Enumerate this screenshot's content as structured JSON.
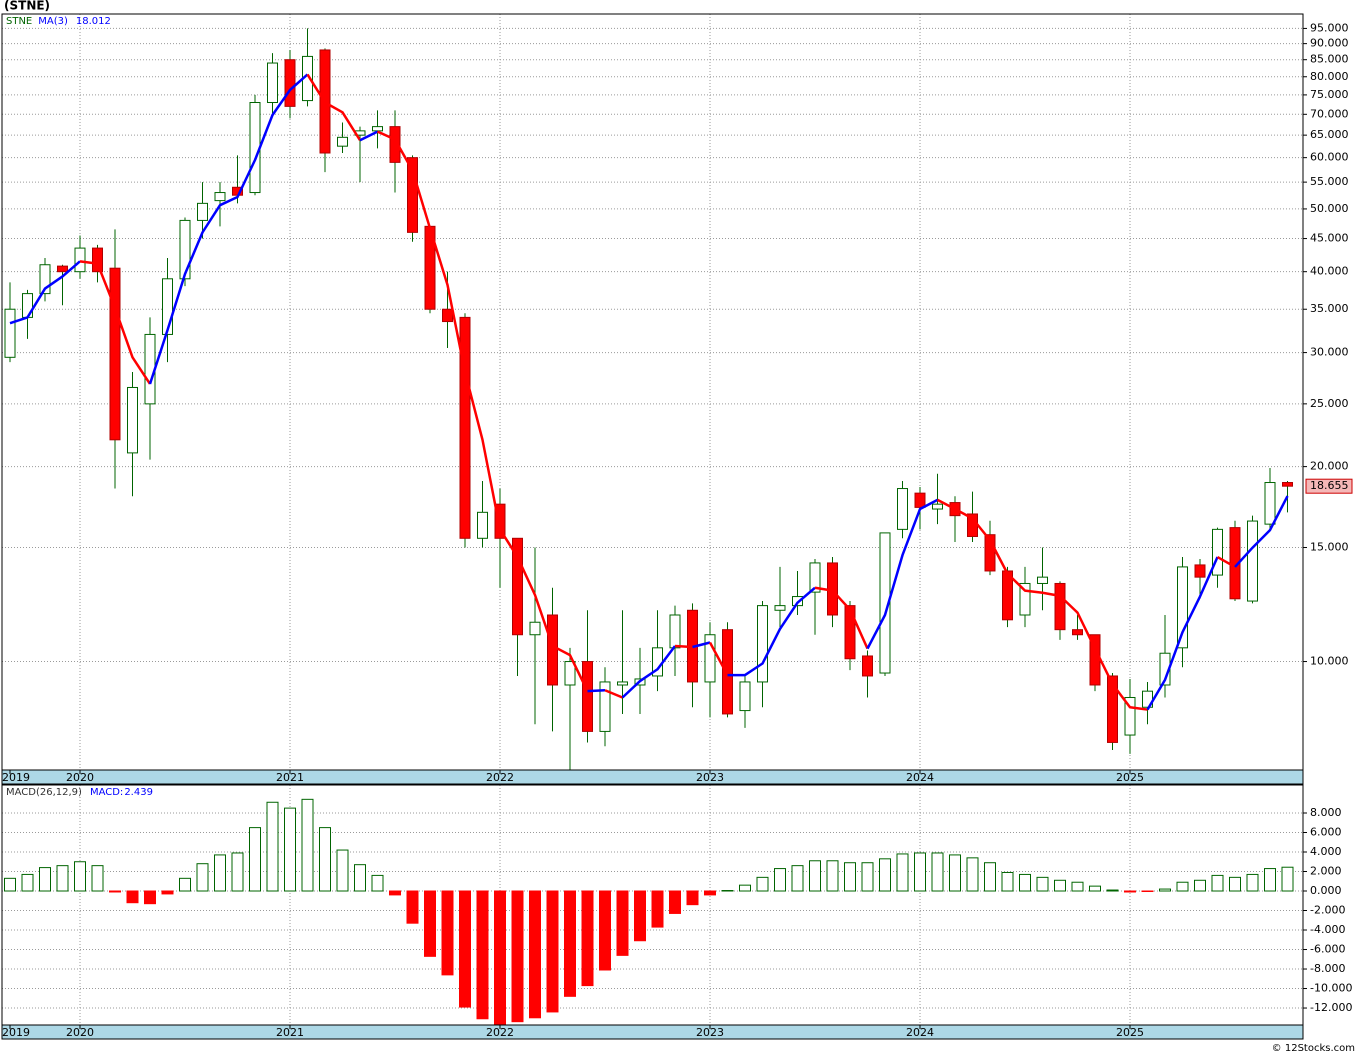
{
  "chart_data": [
    {
      "type": "candlestick",
      "title": "(STNE)",
      "legend": "STNE",
      "categories": [
        "2019",
        null,
        null,
        null,
        "2020",
        null,
        null,
        null,
        null,
        null,
        null,
        null,
        null,
        null,
        null,
        null,
        "2021",
        null,
        null,
        null,
        null,
        null,
        null,
        null,
        null,
        null,
        null,
        null,
        "2022",
        null,
        null,
        null,
        null,
        null,
        null,
        null,
        null,
        null,
        null,
        null,
        "2023",
        null,
        null,
        null,
        null,
        null,
        null,
        null,
        null,
        null,
        null,
        null,
        "2024",
        null,
        null,
        null,
        null,
        null,
        null,
        null,
        null,
        null,
        null,
        null,
        "2025",
        null,
        null,
        null,
        null,
        null,
        null,
        null,
        null,
        null
      ],
      "open": [
        29.5,
        34,
        37,
        40.8,
        40,
        43.5,
        40.5,
        21,
        25,
        32,
        39,
        48,
        51.5,
        54,
        53,
        73,
        85,
        73.5,
        88,
        62.5,
        65,
        66,
        67,
        60,
        47,
        35,
        34,
        15.5,
        17.5,
        15.5,
        11,
        11.8,
        9.2,
        10,
        7.8,
        9.2,
        9.2,
        9.5,
        10.5,
        12,
        9.3,
        11.2,
        8.4,
        9.3,
        12,
        12.2,
        12.8,
        14.2,
        12.2,
        10.2,
        9.6,
        16,
        18.2,
        17.2,
        17.6,
        16.9,
        15.7,
        13.8,
        11.8,
        13.2,
        13.2,
        11.2,
        11,
        9.5,
        7.7,
        8.5,
        9.2,
        10.5,
        14.1,
        13.6,
        16.1,
        12.4,
        16.3,
        18.9
      ],
      "high": [
        38.5,
        37.5,
        42,
        41,
        45.5,
        44,
        46.5,
        28,
        34,
        42,
        48.5,
        55,
        55,
        60.5,
        75,
        87,
        88,
        95,
        88.5,
        68,
        67,
        71,
        71,
        60.5,
        47,
        40,
        34.5,
        19,
        18.5,
        15.5,
        15,
        13,
        10.5,
        12,
        9.8,
        12,
        10.5,
        12,
        12.2,
        12.3,
        11.5,
        11.5,
        9.5,
        12.4,
        14,
        13.8,
        14.4,
        14.5,
        12.4,
        10.4,
        15.8,
        19,
        18.6,
        19.5,
        18,
        18.3,
        16.5,
        14,
        14,
        15,
        13.3,
        11.8,
        11,
        9.6,
        9.4,
        9.3,
        11.8,
        14.5,
        14.4,
        16.1,
        16.5,
        16.8,
        19.9,
        19
      ],
      "low": [
        29,
        31.5,
        36,
        35.5,
        39,
        38.5,
        18.5,
        18,
        20.5,
        29,
        38,
        45,
        47,
        51,
        52.5,
        70,
        69,
        72,
        57,
        61,
        55,
        62,
        53,
        44.5,
        34.5,
        30.5,
        15,
        15,
        13,
        9.5,
        8,
        7.8,
        6.8,
        7.5,
        7.4,
        8.3,
        8.3,
        9,
        9.5,
        8.5,
        8.2,
        8.2,
        7.9,
        8.5,
        11.3,
        11.8,
        11,
        11.3,
        9.7,
        8.8,
        9.5,
        15.5,
        16,
        16.3,
        15.3,
        15.3,
        13.6,
        11.3,
        11.3,
        12,
        10.8,
        10.8,
        9,
        7.3,
        7.2,
        8,
        8.8,
        9.8,
        12.5,
        13,
        12.4,
        12.3,
        16,
        17
      ],
      "close": [
        35,
        37,
        41,
        40,
        43.5,
        40,
        22,
        26.5,
        32,
        39,
        48,
        51,
        53,
        52.5,
        73,
        84,
        72,
        86,
        61,
        64.5,
        66,
        67,
        59,
        46,
        35,
        33.5,
        15.5,
        17,
        15.5,
        11,
        11.5,
        9.2,
        10,
        7.8,
        9.3,
        9.3,
        9.4,
        10.5,
        11.8,
        9.3,
        11,
        8.3,
        9.3,
        12.2,
        12.2,
        12.6,
        14.2,
        11.8,
        10.1,
        9.5,
        15.8,
        18.5,
        17.3,
        17.5,
        16.8,
        15.6,
        13.8,
        11.6,
        13.2,
        13.5,
        11.2,
        11,
        9.2,
        7.5,
        8.8,
        9,
        10.3,
        14,
        13.5,
        16,
        12.5,
        16.48,
        18.9,
        18.655
      ],
      "up_color": "#ffffff",
      "down_color": "#ff0000",
      "up_outline": "#006400",
      "down_outline": "#b00000",
      "wick_color": "#006400",
      "log_scale": true,
      "ylim": [
        6.8,
        100
      ],
      "yticks": [
        {
          "value": 10,
          "label": "10.000"
        },
        {
          "value": 15,
          "label": "15.000"
        },
        {
          "value": 20,
          "label": "20.000"
        },
        {
          "value": 25,
          "label": "25.000"
        },
        {
          "value": 30,
          "label": "30.000"
        },
        {
          "value": 35,
          "label": "35.000"
        },
        {
          "value": 40,
          "label": "40.000"
        },
        {
          "value": 45,
          "label": "45.000"
        },
        {
          "value": 50,
          "label": "50.000"
        },
        {
          "value": 55,
          "label": "55.000"
        },
        {
          "value": 60,
          "label": "60.000"
        },
        {
          "value": 65,
          "label": "65.000"
        },
        {
          "value": 70,
          "label": "70.000"
        },
        {
          "value": 75,
          "label": "75.000"
        },
        {
          "value": 80,
          "label": "80.000"
        },
        {
          "value": 85,
          "label": "85.000"
        },
        {
          "value": 90,
          "label": "90.000"
        },
        {
          "value": 95,
          "label": "95.000"
        }
      ],
      "grid": true,
      "overlay": {
        "name": "MA(3)",
        "rising_color": "#0000ff",
        "falling_color": "#ff0000",
        "values": [
          33.3,
          34,
          37.67,
          39.33,
          41.5,
          41.17,
          35.17,
          29.5,
          26.83,
          32.5,
          39.67,
          46,
          50.67,
          52.17,
          59.5,
          69.83,
          76.33,
          80.67,
          73,
          70.5,
          63.83,
          65.83,
          64,
          57.33,
          46.67,
          38.17,
          28,
          22,
          16,
          14.5,
          12.67,
          10.57,
          10.23,
          9,
          9.03,
          8.8,
          9.33,
          9.73,
          10.57,
          10.53,
          10.7,
          9.53,
          9.53,
          9.93,
          11.23,
          12.33,
          13,
          12.87,
          12.03,
          10.47,
          11.8,
          14.6,
          17.2,
          17.77,
          17.2,
          16.63,
          15.4,
          13.67,
          12.87,
          12.77,
          12.63,
          11.9,
          10.47,
          9.23,
          8.5,
          8.43,
          9.37,
          11.1,
          12.6,
          14.5,
          14,
          14.99,
          15.96,
          18.012
        ]
      }
    },
    {
      "type": "bar",
      "legend": "MACD(26,12,9)",
      "series": [
        {
          "name": "MACD:",
          "color": "#006400",
          "negative_color": "#ff0000",
          "values": [
            1.3,
            1.7,
            2.4,
            2.6,
            3.0,
            2.6,
            -0.1,
            -1.2,
            -1.3,
            -0.3,
            1.3,
            2.8,
            3.7,
            3.9,
            6.5,
            9.1,
            8.5,
            9.4,
            6.5,
            4.2,
            2.7,
            1.6,
            -0.4,
            -3.3,
            -6.7,
            -8.6,
            -11.9,
            -13.1,
            -13.7,
            -13.4,
            -13.0,
            -12.4,
            -10.8,
            -9.7,
            -8.1,
            -6.6,
            -5.1,
            -3.7,
            -2.3,
            -1.4,
            -0.4,
            0.05,
            0.6,
            1.4,
            2.3,
            2.6,
            3.1,
            3.1,
            2.9,
            2.9,
            3.3,
            3.8,
            3.9,
            3.9,
            3.7,
            3.4,
            2.9,
            1.9,
            1.7,
            1.4,
            1.1,
            0.9,
            0.5,
            0.1,
            -0.1,
            -0.05,
            0.2,
            0.9,
            1.1,
            1.6,
            1.4,
            1.7,
            2.3,
            2.439
          ]
        }
      ],
      "ylim": [
        -13.74,
        10.87
      ],
      "yticks": [
        {
          "value": -12,
          "label": "-12.000"
        },
        {
          "value": -10,
          "label": "-10.000"
        },
        {
          "value": -8,
          "label": "-8.000"
        },
        {
          "value": -6,
          "label": "-6.000"
        },
        {
          "value": -4,
          "label": "-4.000"
        },
        {
          "value": -2,
          "label": "-2.000"
        },
        {
          "value": 0,
          "label": "0.000"
        },
        {
          "value": 2,
          "label": "2.000"
        },
        {
          "value": 4,
          "label": "4.000"
        },
        {
          "value": 6,
          "label": "6.000"
        },
        {
          "value": 8,
          "label": "8.000"
        }
      ],
      "grid": true
    }
  ],
  "footer": "© 12Stocks.com"
}
